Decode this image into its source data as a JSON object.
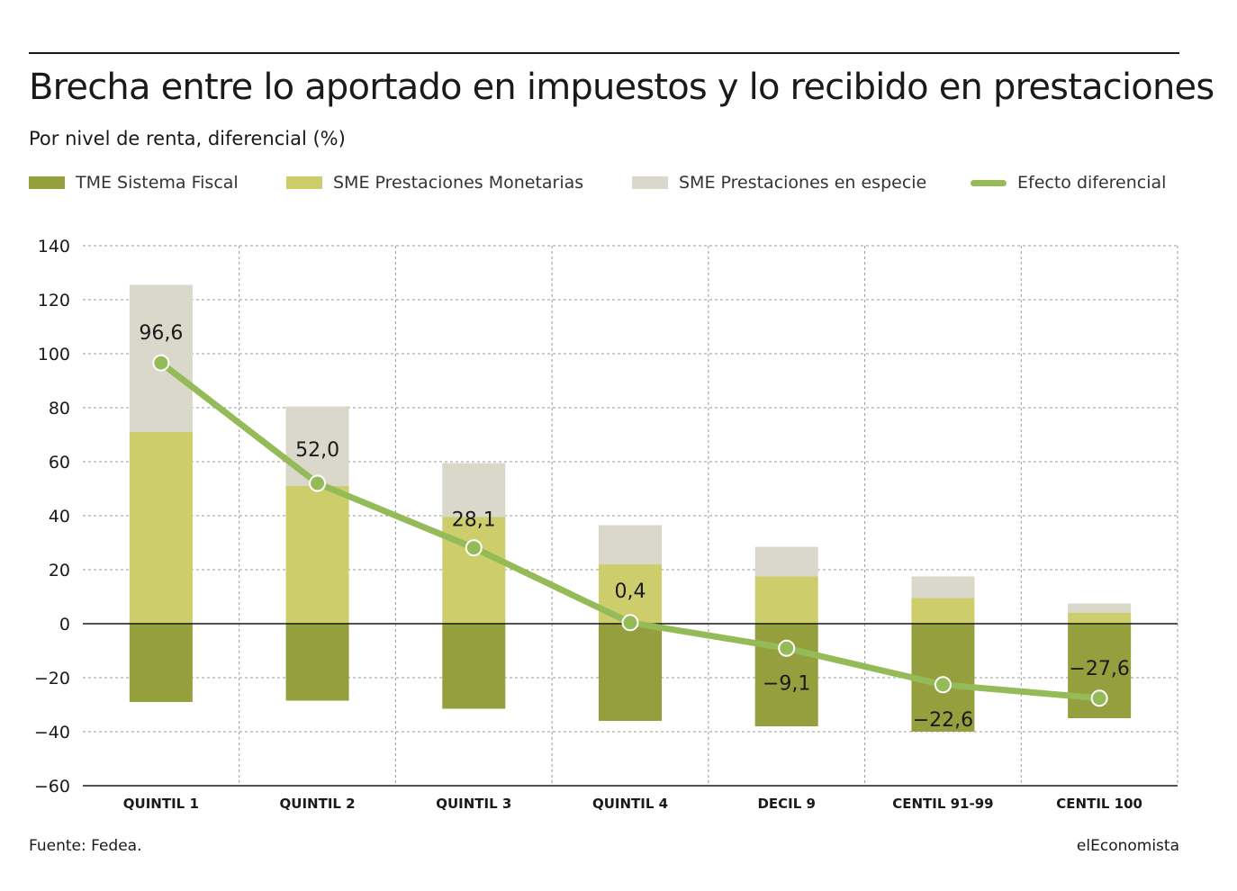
{
  "title": "Brecha entre lo aportado en impuestos y lo recibido en prestaciones",
  "subtitle": "Por nivel de renta, diferencial (%)",
  "legend": [
    {
      "label": "TME Sistema Fiscal",
      "color": "#959f3e",
      "kind": "bar"
    },
    {
      "label": "SME Prestaciones Monetarias",
      "color": "#cdcd6c",
      "kind": "bar"
    },
    {
      "label": "SME Prestaciones en especie",
      "color": "#d9d8cb",
      "kind": "bar"
    },
    {
      "label": "Efecto diferencial",
      "color": "#95bb59",
      "kind": "line"
    }
  ],
  "source": "Fuente: Fedea.",
  "brand": "elEconomista",
  "chart_data": {
    "type": "bar",
    "stacked": true,
    "categories": [
      "QUINTIL 1",
      "QUINTIL 2",
      "QUINTIL 3",
      "QUINTIL 4",
      "DECIL 9",
      "CENTIL 91-99",
      "CENTIL 100"
    ],
    "series": [
      {
        "name": "TME Sistema Fiscal",
        "values": [
          -29,
          -28.5,
          -31.5,
          -36,
          -38,
          -40,
          -35
        ]
      },
      {
        "name": "SME Prestaciones Monetarias",
        "values": [
          71,
          51,
          39.5,
          22,
          17.5,
          9.5,
          4
        ]
      },
      {
        "name": "SME Prestaciones en especie",
        "values": [
          54.5,
          29.5,
          20,
          14.5,
          11,
          8,
          3.5
        ]
      }
    ],
    "line": {
      "name": "Efecto diferencial",
      "values": [
        96.6,
        52.0,
        28.1,
        0.4,
        -9.1,
        -22.6,
        -27.6
      ],
      "labels": [
        "96,6",
        "52,0",
        "28,1",
        "0,4",
        "−9,1",
        "−22,6",
        "−27,6"
      ]
    },
    "yticks": [
      "140",
      "120",
      "100",
      "80",
      "60",
      "40",
      "20",
      "0",
      "−20",
      "−40",
      "−60"
    ],
    "ytick_values": [
      140,
      120,
      100,
      80,
      60,
      40,
      20,
      0,
      -20,
      -40,
      -60
    ],
    "ylim": [
      -60,
      140
    ],
    "grid": true,
    "legend_position": "top"
  }
}
